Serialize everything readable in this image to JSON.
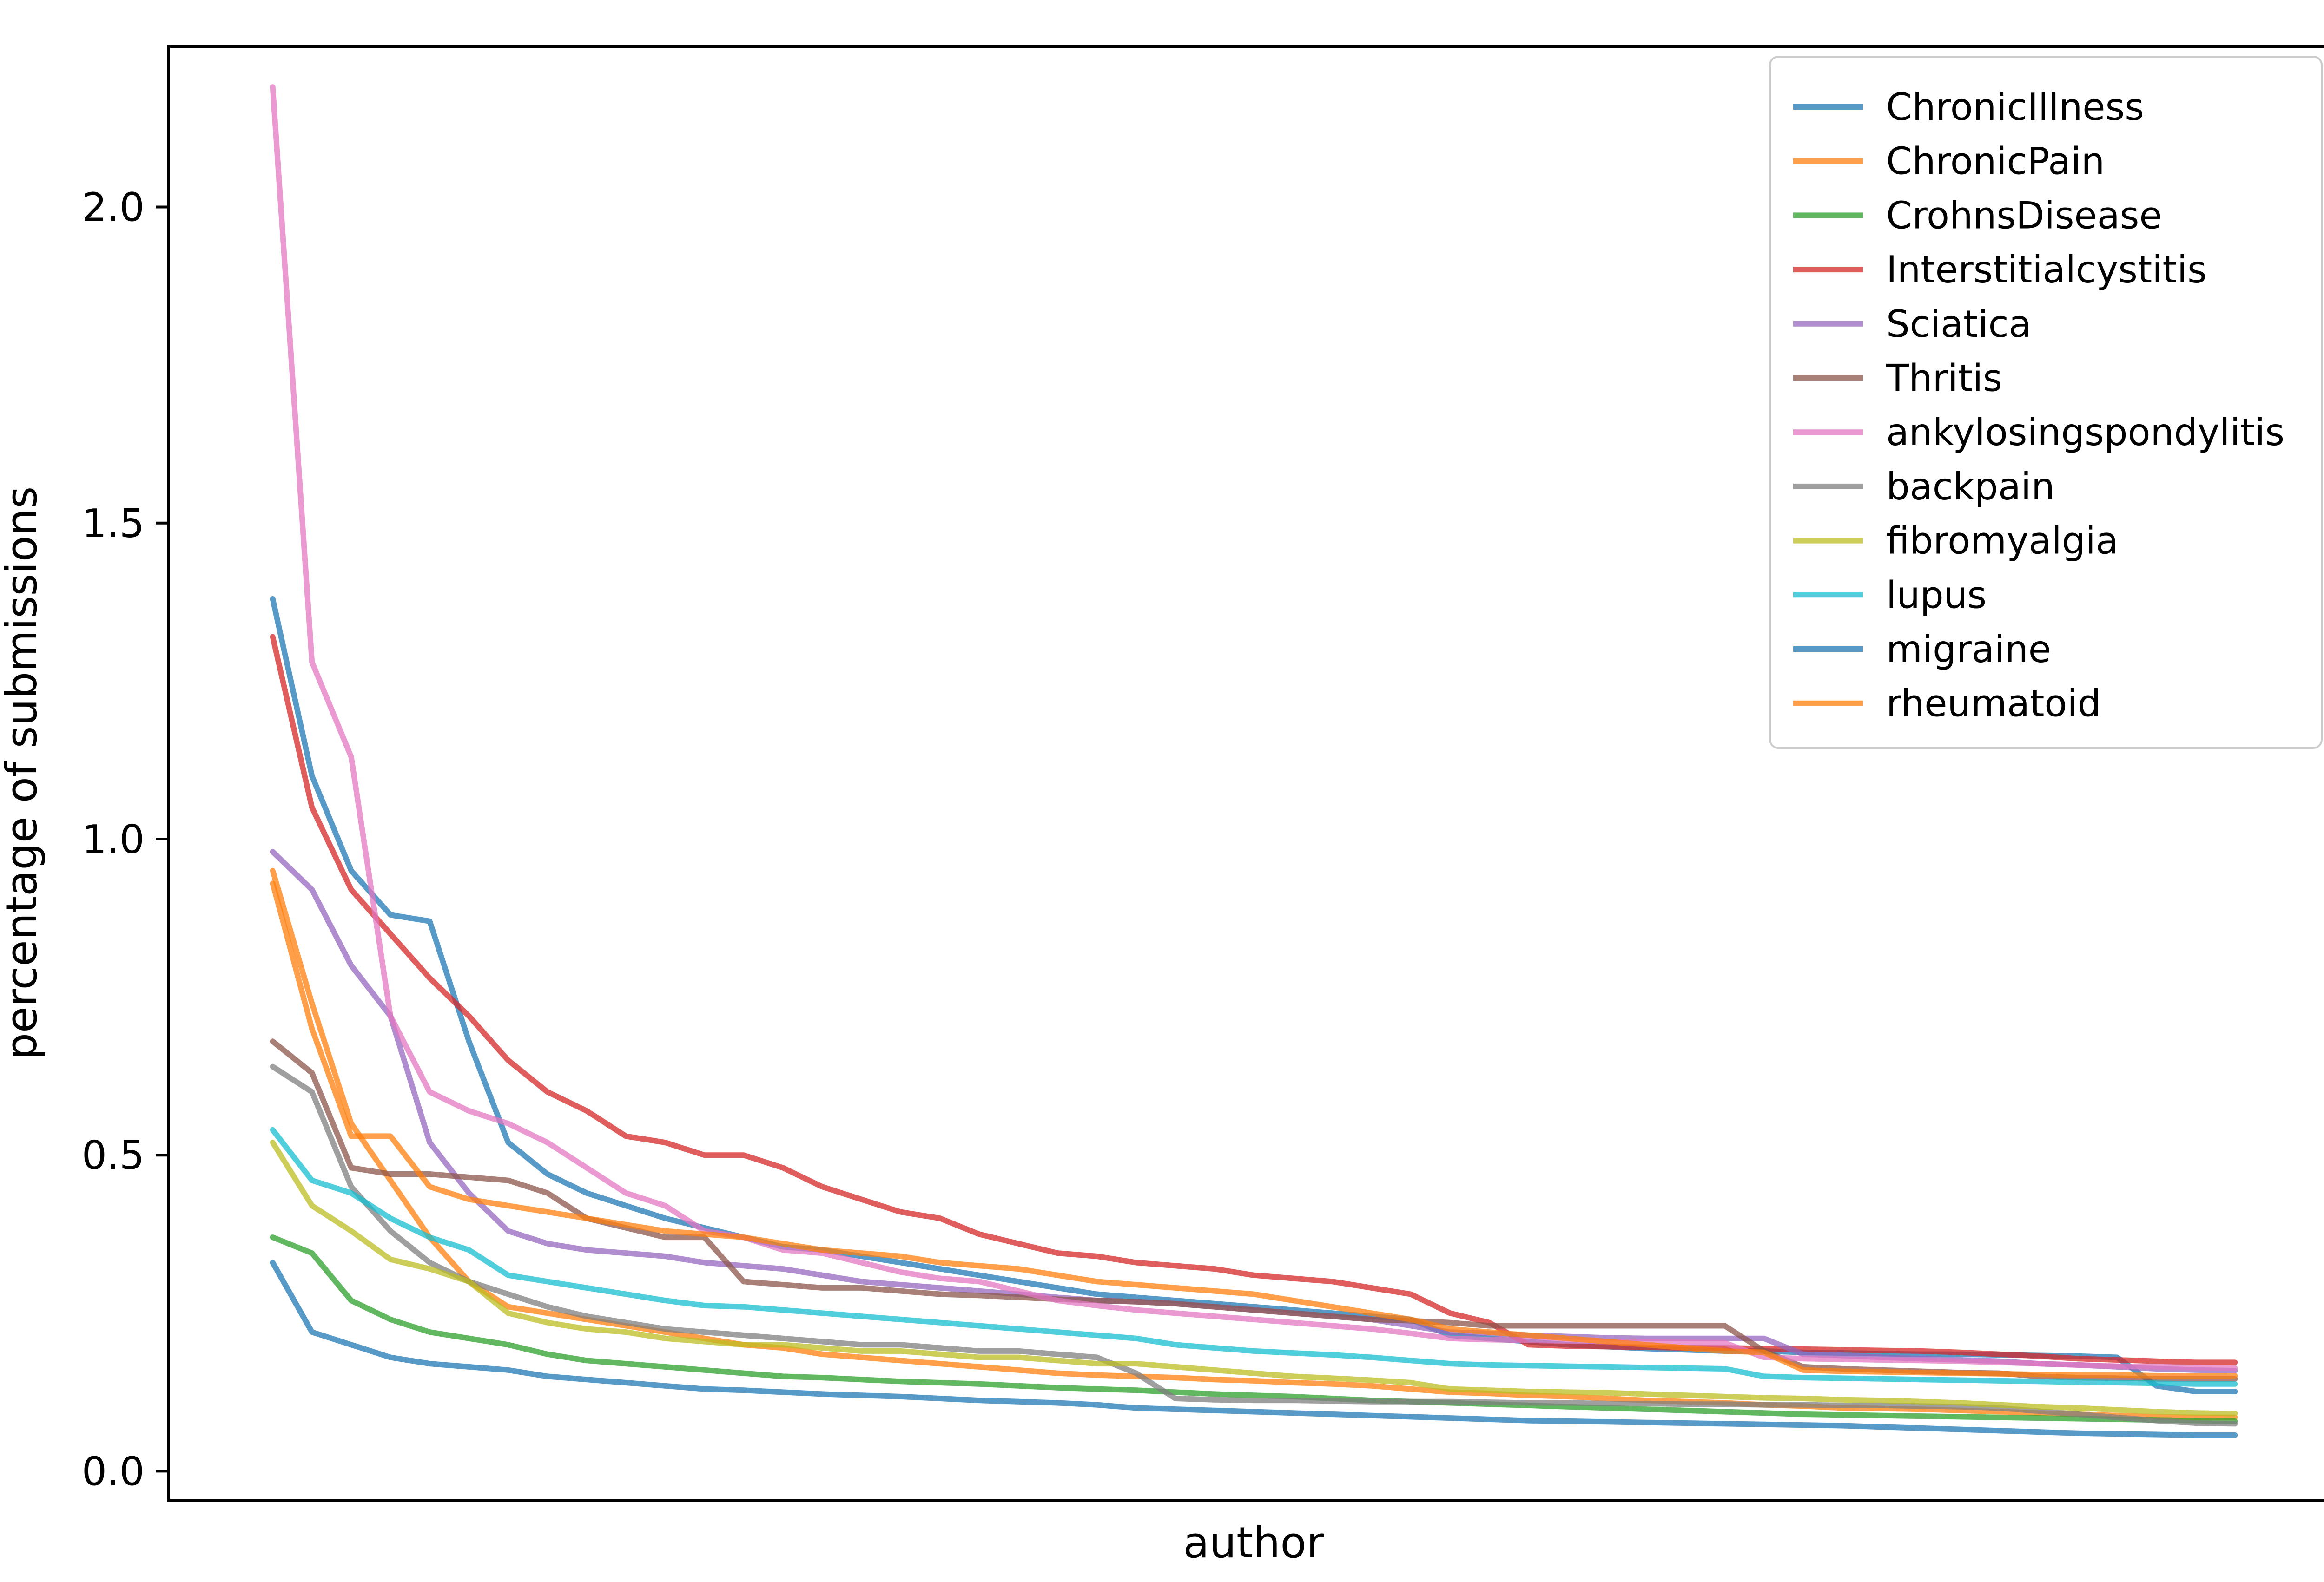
{
  "figure": {
    "background": "#ffffff",
    "spine_color": "#000000",
    "legend_border_color": "#cccccc",
    "legend_background": "#ffffff"
  },
  "chart_data": {
    "type": "line",
    "title": "",
    "xlabel": "author",
    "ylabel": "percentage of submissions",
    "x_axis_note": "authors ranked by share; no x tick labels shown",
    "xlim": [
      -5.3,
      105.3
    ],
    "ylim": [
      -0.046,
      2.254
    ],
    "yticks": [
      0.0,
      0.5,
      1.0,
      1.5,
      2.0
    ],
    "ytick_labels": [
      "0.0",
      "0.5",
      "1.0",
      "1.5",
      "2.0"
    ],
    "grid": false,
    "legend_position": "upper right",
    "line_width": 12,
    "line_opacity": 0.75,
    "x": [
      0,
      2,
      4,
      6,
      8,
      10,
      12,
      14,
      16,
      18,
      20,
      22,
      24,
      26,
      28,
      30,
      32,
      34,
      36,
      38,
      40,
      42,
      44,
      46,
      48,
      50,
      52,
      54,
      56,
      58,
      60,
      62,
      64,
      66,
      68,
      70,
      72,
      74,
      76,
      78,
      80,
      82,
      84,
      86,
      88,
      90,
      92,
      94,
      96,
      98,
      100
    ],
    "series": [
      {
        "name": "ChronicIllness",
        "color": "#1f77b4",
        "values": [
          1.38,
          1.1,
          0.95,
          0.88,
          0.87,
          0.68,
          0.52,
          0.47,
          0.44,
          0.42,
          0.4,
          0.385,
          0.37,
          0.355,
          0.35,
          0.34,
          0.33,
          0.32,
          0.31,
          0.3,
          0.29,
          0.28,
          0.275,
          0.27,
          0.265,
          0.26,
          0.255,
          0.25,
          0.245,
          0.24,
          0.215,
          0.21,
          0.205,
          0.2,
          0.197,
          0.194,
          0.192,
          0.19,
          0.19,
          0.188,
          0.187,
          0.186,
          0.185,
          0.185,
          0.184,
          0.183,
          0.182,
          0.18,
          0.135,
          0.126,
          0.126
        ]
      },
      {
        "name": "ChronicPain",
        "color": "#ff7f0e",
        "values": [
          0.95,
          0.74,
          0.55,
          0.46,
          0.37,
          0.3,
          0.26,
          0.25,
          0.24,
          0.23,
          0.22,
          0.21,
          0.2,
          0.195,
          0.185,
          0.18,
          0.175,
          0.17,
          0.165,
          0.16,
          0.155,
          0.152,
          0.15,
          0.148,
          0.145,
          0.143,
          0.14,
          0.138,
          0.135,
          0.13,
          0.125,
          0.123,
          0.12,
          0.118,
          0.115,
          0.112,
          0.11,
          0.108,
          0.105,
          0.103,
          0.1,
          0.099,
          0.098,
          0.096,
          0.094,
          0.092,
          0.09,
          0.088,
          0.086,
          0.085,
          0.085
        ]
      },
      {
        "name": "CrohnsDisease",
        "color": "#2ca02c",
        "values": [
          0.37,
          0.345,
          0.27,
          0.24,
          0.22,
          0.21,
          0.2,
          0.185,
          0.175,
          0.17,
          0.165,
          0.16,
          0.155,
          0.15,
          0.148,
          0.145,
          0.142,
          0.14,
          0.138,
          0.135,
          0.132,
          0.13,
          0.128,
          0.125,
          0.122,
          0.12,
          0.118,
          0.115,
          0.112,
          0.11,
          0.108,
          0.106,
          0.104,
          0.102,
          0.1,
          0.098,
          0.096,
          0.094,
          0.092,
          0.09,
          0.089,
          0.088,
          0.087,
          0.086,
          0.085,
          0.084,
          0.083,
          0.082,
          0.081,
          0.08,
          0.079
        ]
      },
      {
        "name": "Interstitialcystitis",
        "color": "#d62728",
        "values": [
          1.32,
          1.05,
          0.92,
          0.85,
          0.78,
          0.72,
          0.65,
          0.6,
          0.57,
          0.53,
          0.52,
          0.5,
          0.5,
          0.48,
          0.45,
          0.43,
          0.41,
          0.4,
          0.375,
          0.36,
          0.345,
          0.34,
          0.33,
          0.325,
          0.32,
          0.31,
          0.305,
          0.3,
          0.29,
          0.28,
          0.25,
          0.235,
          0.2,
          0.198,
          0.197,
          0.196,
          0.195,
          0.195,
          0.194,
          0.193,
          0.192,
          0.191,
          0.19,
          0.188,
          0.185,
          0.182,
          0.178,
          0.176,
          0.174,
          0.172,
          0.172
        ]
      },
      {
        "name": "Sciatica",
        "color": "#9467bd",
        "values": [
          0.98,
          0.92,
          0.8,
          0.72,
          0.52,
          0.44,
          0.38,
          0.36,
          0.35,
          0.345,
          0.34,
          0.33,
          0.325,
          0.32,
          0.31,
          0.3,
          0.295,
          0.29,
          0.285,
          0.28,
          0.275,
          0.27,
          0.268,
          0.265,
          0.26,
          0.255,
          0.25,
          0.245,
          0.24,
          0.23,
          0.22,
          0.218,
          0.215,
          0.213,
          0.211,
          0.21,
          0.21,
          0.21,
          0.21,
          0.185,
          0.183,
          0.18,
          0.178,
          0.176,
          0.174,
          0.17,
          0.168,
          0.165,
          0.162,
          0.16,
          0.159
        ]
      },
      {
        "name": "Thritis",
        "color": "#8c564b",
        "values": [
          0.68,
          0.63,
          0.48,
          0.47,
          0.47,
          0.465,
          0.46,
          0.44,
          0.4,
          0.385,
          0.37,
          0.37,
          0.3,
          0.295,
          0.29,
          0.29,
          0.285,
          0.28,
          0.278,
          0.275,
          0.272,
          0.27,
          0.268,
          0.265,
          0.26,
          0.255,
          0.25,
          0.245,
          0.24,
          0.238,
          0.235,
          0.23,
          0.23,
          0.23,
          0.23,
          0.23,
          0.23,
          0.23,
          0.19,
          0.165,
          0.162,
          0.16,
          0.158,
          0.156,
          0.155,
          0.15,
          0.148,
          0.147,
          0.146,
          0.146,
          0.146
        ]
      },
      {
        "name": "ankylosingspondylitis",
        "color": "#e377c2",
        "values": [
          2.19,
          1.28,
          1.13,
          0.72,
          0.6,
          0.57,
          0.55,
          0.52,
          0.48,
          0.44,
          0.42,
          0.38,
          0.37,
          0.35,
          0.345,
          0.33,
          0.315,
          0.305,
          0.3,
          0.285,
          0.27,
          0.262,
          0.255,
          0.25,
          0.245,
          0.24,
          0.235,
          0.23,
          0.225,
          0.218,
          0.21,
          0.208,
          0.207,
          0.206,
          0.205,
          0.205,
          0.204,
          0.203,
          0.18,
          0.178,
          0.177,
          0.176,
          0.175,
          0.174,
          0.172,
          0.17,
          0.168,
          0.166,
          0.165,
          0.164,
          0.163
        ]
      },
      {
        "name": "backpain",
        "color": "#7f7f7f",
        "values": [
          0.64,
          0.6,
          0.45,
          0.38,
          0.33,
          0.3,
          0.28,
          0.26,
          0.245,
          0.235,
          0.225,
          0.22,
          0.215,
          0.21,
          0.205,
          0.2,
          0.2,
          0.195,
          0.19,
          0.19,
          0.185,
          0.18,
          0.155,
          0.115,
          0.113,
          0.112,
          0.112,
          0.111,
          0.11,
          0.11,
          0.11,
          0.109,
          0.108,
          0.108,
          0.107,
          0.107,
          0.106,
          0.106,
          0.105,
          0.105,
          0.104,
          0.104,
          0.103,
          0.102,
          0.1,
          0.095,
          0.09,
          0.085,
          0.08,
          0.076,
          0.075
        ]
      },
      {
        "name": "fibromyalgia",
        "color": "#bcbd22",
        "values": [
          0.52,
          0.42,
          0.38,
          0.335,
          0.32,
          0.3,
          0.25,
          0.235,
          0.225,
          0.22,
          0.21,
          0.205,
          0.2,
          0.2,
          0.195,
          0.19,
          0.19,
          0.185,
          0.18,
          0.18,
          0.175,
          0.17,
          0.17,
          0.165,
          0.16,
          0.155,
          0.15,
          0.147,
          0.144,
          0.14,
          0.13,
          0.128,
          0.126,
          0.125,
          0.124,
          0.122,
          0.12,
          0.118,
          0.116,
          0.115,
          0.113,
          0.112,
          0.11,
          0.108,
          0.105,
          0.102,
          0.1,
          0.097,
          0.094,
          0.092,
          0.091
        ]
      },
      {
        "name": "lupus",
        "color": "#17becf",
        "values": [
          0.54,
          0.46,
          0.44,
          0.4,
          0.37,
          0.35,
          0.31,
          0.3,
          0.29,
          0.28,
          0.27,
          0.262,
          0.26,
          0.255,
          0.25,
          0.245,
          0.24,
          0.235,
          0.23,
          0.225,
          0.22,
          0.215,
          0.21,
          0.2,
          0.195,
          0.19,
          0.187,
          0.184,
          0.18,
          0.175,
          0.17,
          0.168,
          0.167,
          0.166,
          0.165,
          0.164,
          0.163,
          0.162,
          0.15,
          0.148,
          0.147,
          0.146,
          0.145,
          0.144,
          0.143,
          0.142,
          0.141,
          0.14,
          0.139,
          0.138,
          0.138
        ]
      },
      {
        "name": "migraine",
        "color": "#1f77b4",
        "values": [
          0.33,
          0.22,
          0.2,
          0.18,
          0.17,
          0.165,
          0.16,
          0.15,
          0.145,
          0.14,
          0.135,
          0.13,
          0.128,
          0.125,
          0.122,
          0.12,
          0.118,
          0.115,
          0.112,
          0.11,
          0.108,
          0.105,
          0.1,
          0.098,
          0.096,
          0.094,
          0.092,
          0.09,
          0.088,
          0.086,
          0.084,
          0.082,
          0.08,
          0.079,
          0.078,
          0.077,
          0.076,
          0.075,
          0.074,
          0.073,
          0.072,
          0.07,
          0.068,
          0.066,
          0.064,
          0.062,
          0.06,
          0.059,
          0.058,
          0.057,
          0.057
        ]
      },
      {
        "name": "rheumatoid",
        "color": "#ff7f0e",
        "values": [
          0.93,
          0.7,
          0.53,
          0.53,
          0.45,
          0.43,
          0.42,
          0.41,
          0.4,
          0.39,
          0.38,
          0.375,
          0.37,
          0.36,
          0.35,
          0.345,
          0.34,
          0.33,
          0.325,
          0.32,
          0.31,
          0.3,
          0.295,
          0.29,
          0.285,
          0.28,
          0.27,
          0.26,
          0.25,
          0.24,
          0.225,
          0.22,
          0.215,
          0.21,
          0.205,
          0.2,
          0.195,
          0.19,
          0.188,
          0.16,
          0.158,
          0.157,
          0.156,
          0.155,
          0.154,
          0.153,
          0.152,
          0.152,
          0.151,
          0.151,
          0.151
        ]
      }
    ]
  }
}
